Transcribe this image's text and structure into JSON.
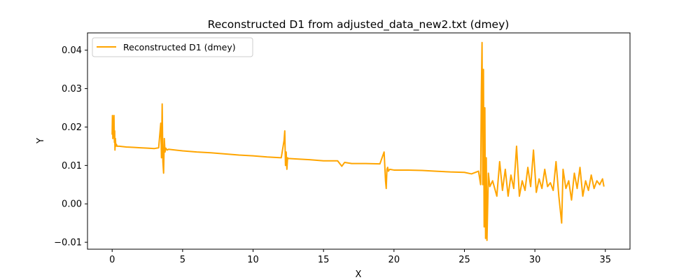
{
  "chart_data": {
    "type": "line",
    "title": "Reconstructed D1 from adjusted_data_new2.txt (dmey)",
    "xlabel": "X",
    "ylabel": "Y",
    "xlim": [
      -1.75,
      36.75
    ],
    "ylim": [
      -0.0118,
      0.0445
    ],
    "xticks": [
      0,
      5,
      10,
      15,
      20,
      25,
      30,
      35
    ],
    "xtick_labels": [
      "0",
      "5",
      "10",
      "15",
      "20",
      "25",
      "30",
      "35"
    ],
    "yticks": [
      -0.01,
      0.0,
      0.01,
      0.02,
      0.03,
      0.04
    ],
    "ytick_labels": [
      "−0.01",
      "0.00",
      "0.01",
      "0.02",
      "0.03",
      "0.04"
    ],
    "grid": false,
    "legend": {
      "placement": "top-left"
    },
    "series": [
      {
        "name": "Reconstructed D1 (dmey)",
        "color": "#ffa500",
        "x": [
          0,
          0.02,
          0.05,
          0.08,
          0.1,
          0.13,
          0.16,
          0.18,
          0.2,
          0.23,
          0.26,
          0.3,
          0.35,
          0.5,
          1.0,
          1.5,
          2.0,
          2.5,
          3.0,
          3.3,
          3.45,
          3.5,
          3.55,
          3.6,
          3.65,
          3.7,
          3.75,
          3.8,
          3.9,
          4.0,
          5.0,
          6.0,
          7.0,
          8.0,
          9.0,
          10.0,
          11.0,
          12.0,
          12.2,
          12.25,
          12.3,
          12.35,
          12.4,
          12.45,
          12.5,
          12.6,
          13.0,
          14.0,
          15.0,
          16.0,
          16.3,
          16.5,
          17.0,
          18.0,
          19.0,
          19.3,
          19.4,
          19.45,
          19.5,
          19.55,
          19.6,
          19.7,
          20.0,
          21.0,
          22.0,
          23.0,
          24.0,
          25.0,
          25.5,
          26.0,
          26.15,
          26.2,
          26.25,
          26.3,
          26.35,
          26.4,
          26.45,
          26.5,
          26.55,
          26.6,
          26.7,
          26.8,
          27.0,
          27.3,
          27.5,
          27.7,
          27.9,
          28.1,
          28.3,
          28.5,
          28.7,
          28.9,
          29.1,
          29.3,
          29.5,
          29.7,
          29.9,
          30.1,
          30.3,
          30.5,
          30.7,
          30.9,
          31.1,
          31.3,
          31.5,
          31.7,
          31.9,
          32.0,
          32.2,
          32.4,
          32.6,
          32.8,
          33.0,
          33.2,
          33.4,
          33.6,
          33.8,
          34.0,
          34.2,
          34.4,
          34.6,
          34.8,
          34.9
        ],
        "y": [
          0.018,
          0.023,
          0.017,
          0.022,
          0.019,
          0.023,
          0.016,
          0.019,
          0.014,
          0.017,
          0.015,
          0.0155,
          0.015,
          0.015,
          0.0148,
          0.0147,
          0.0146,
          0.0145,
          0.0144,
          0.0146,
          0.021,
          0.012,
          0.026,
          0.011,
          0.008,
          0.017,
          0.0135,
          0.0145,
          0.014,
          0.0142,
          0.0138,
          0.0135,
          0.0133,
          0.013,
          0.0127,
          0.0125,
          0.0122,
          0.012,
          0.0165,
          0.019,
          0.01,
          0.0135,
          0.009,
          0.012,
          0.0118,
          0.0118,
          0.0117,
          0.0115,
          0.0112,
          0.0112,
          0.0098,
          0.0108,
          0.0105,
          0.0105,
          0.0104,
          0.0135,
          0.006,
          0.004,
          0.009,
          0.0095,
          0.0085,
          0.009,
          0.0088,
          0.0088,
          0.0087,
          0.0085,
          0.0083,
          0.0082,
          0.0078,
          0.0085,
          0.005,
          0.029,
          0.042,
          0.005,
          0.035,
          -0.006,
          0.025,
          -0.009,
          0.012,
          -0.0095,
          0.008,
          0.0045,
          0.006,
          0.002,
          0.011,
          0.0035,
          0.009,
          0.002,
          0.0075,
          0.004,
          0.015,
          0.002,
          0.006,
          0.0035,
          0.0095,
          0.0045,
          0.014,
          0.003,
          0.0065,
          0.004,
          0.009,
          0.0045,
          0.0055,
          0.0035,
          0.011,
          0.002,
          -0.005,
          0.009,
          0.004,
          0.006,
          0.001,
          0.008,
          0.004,
          0.0095,
          0.002,
          0.006,
          0.0035,
          0.0075,
          0.004,
          0.006,
          0.005,
          0.0065,
          0.0045
        ]
      }
    ]
  }
}
